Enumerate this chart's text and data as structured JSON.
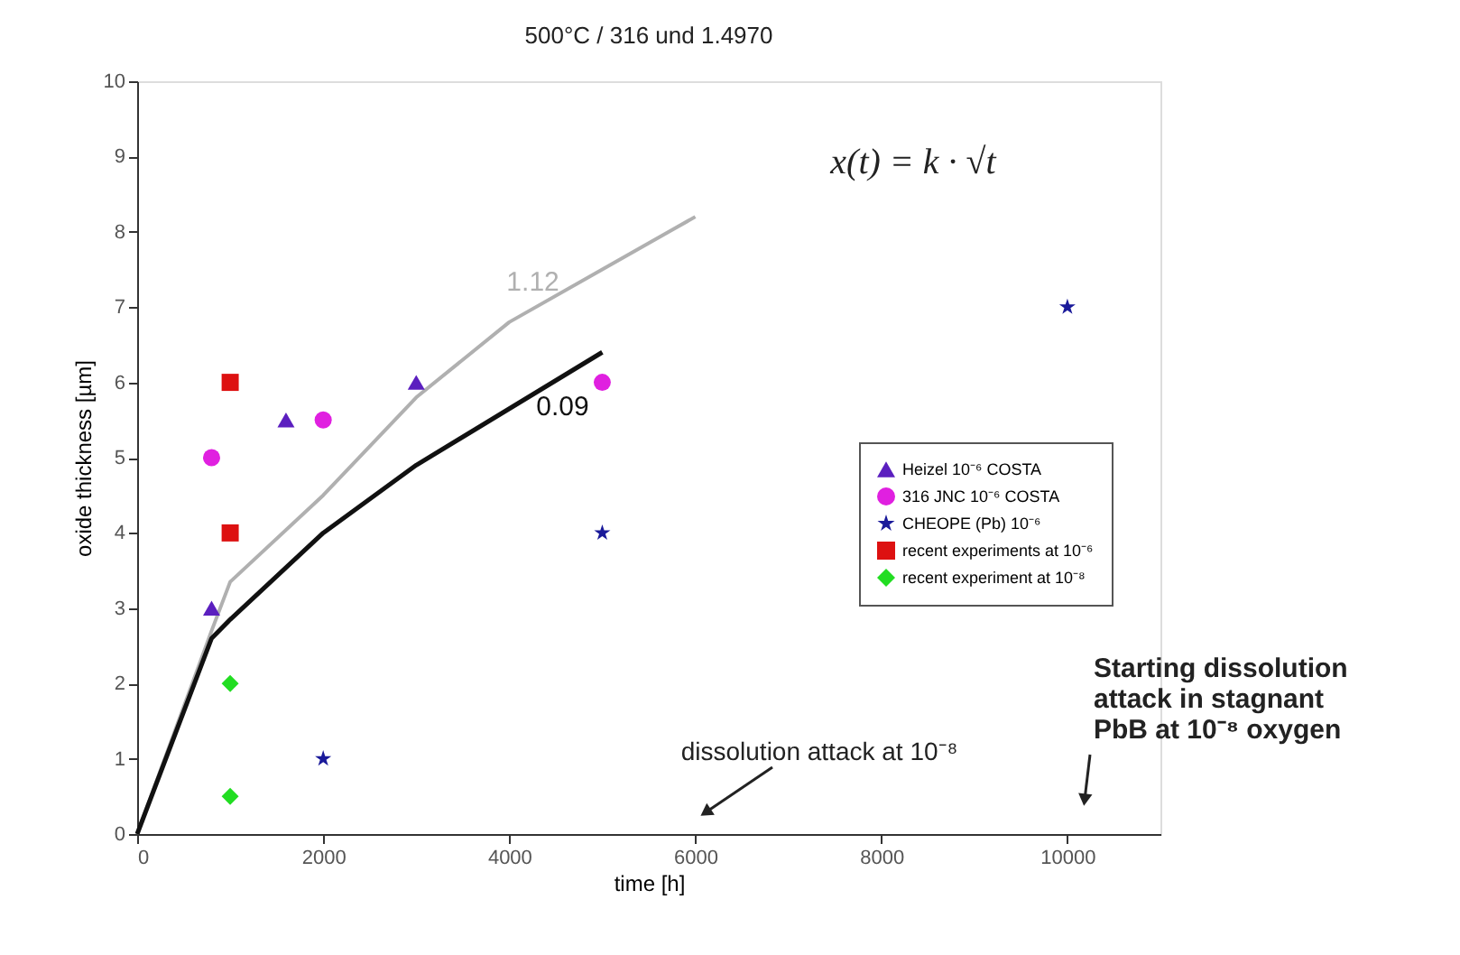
{
  "chart_data": {
    "type": "scatter",
    "title": "500°C / 316 und 1.4970",
    "xlabel": "time [h]",
    "ylabel": "oxide thickness [µm]",
    "xlim": [
      0,
      11000
    ],
    "xticks": [
      0,
      2000,
      4000,
      6000,
      8000,
      10000
    ],
    "ylim": [
      0,
      10
    ],
    "yticks": [
      0,
      1,
      2,
      3,
      4,
      5,
      6,
      7,
      8,
      9,
      10
    ],
    "grid": false,
    "legend": "right",
    "series": [
      {
        "name": "Heizel 10⁻⁶ COSTA",
        "color": "#5b1fbf",
        "marker": "triangle",
        "x": [
          800,
          1600,
          3000
        ],
        "values": [
          3,
          5.5,
          6
        ]
      },
      {
        "name": "316 JNC 10⁻⁶ COSTA",
        "color": "#e020e0",
        "marker": "circle",
        "x": [
          800,
          2000,
          5000
        ],
        "values": [
          5,
          5.5,
          6
        ]
      },
      {
        "name": "CHEOPE (Pb) 10⁻⁶",
        "color": "#1a1a9a",
        "marker": "star",
        "x": [
          2000,
          5000,
          10000
        ],
        "values": [
          1,
          4,
          7
        ]
      },
      {
        "name": "recent experiments at 10⁻⁶",
        "color": "#dd1111",
        "marker": "square",
        "x": [
          1000,
          1000
        ],
        "values": [
          6,
          4
        ]
      },
      {
        "name": "recent experiment at 10⁻⁸",
        "color": "#22dd22",
        "marker": "diamond",
        "x": [
          1000,
          1000
        ],
        "values": [
          2,
          0.5
        ]
      },
      {
        "name": "1.12",
        "type": "line",
        "color": "#b0b0b0",
        "x": [
          0,
          800,
          1000,
          2000,
          3000,
          4000,
          5000,
          6000
        ],
        "values": [
          0,
          2.7,
          3.35,
          4.5,
          5.8,
          6.8,
          7.5,
          8.2
        ]
      },
      {
        "name": "0.09",
        "type": "line",
        "color": "#111111",
        "x": [
          0,
          800,
          1000,
          2000,
          3000,
          5000
        ],
        "values": [
          0,
          2.6,
          2.85,
          4.0,
          4.9,
          6.4
        ]
      }
    ],
    "annotations": [
      "x(t) = k · √t",
      "dissolution attack at 10⁻⁸",
      "Starting dissolution\nattack in stagnant\nPbB at 10⁻⁸ oxygen"
    ]
  }
}
